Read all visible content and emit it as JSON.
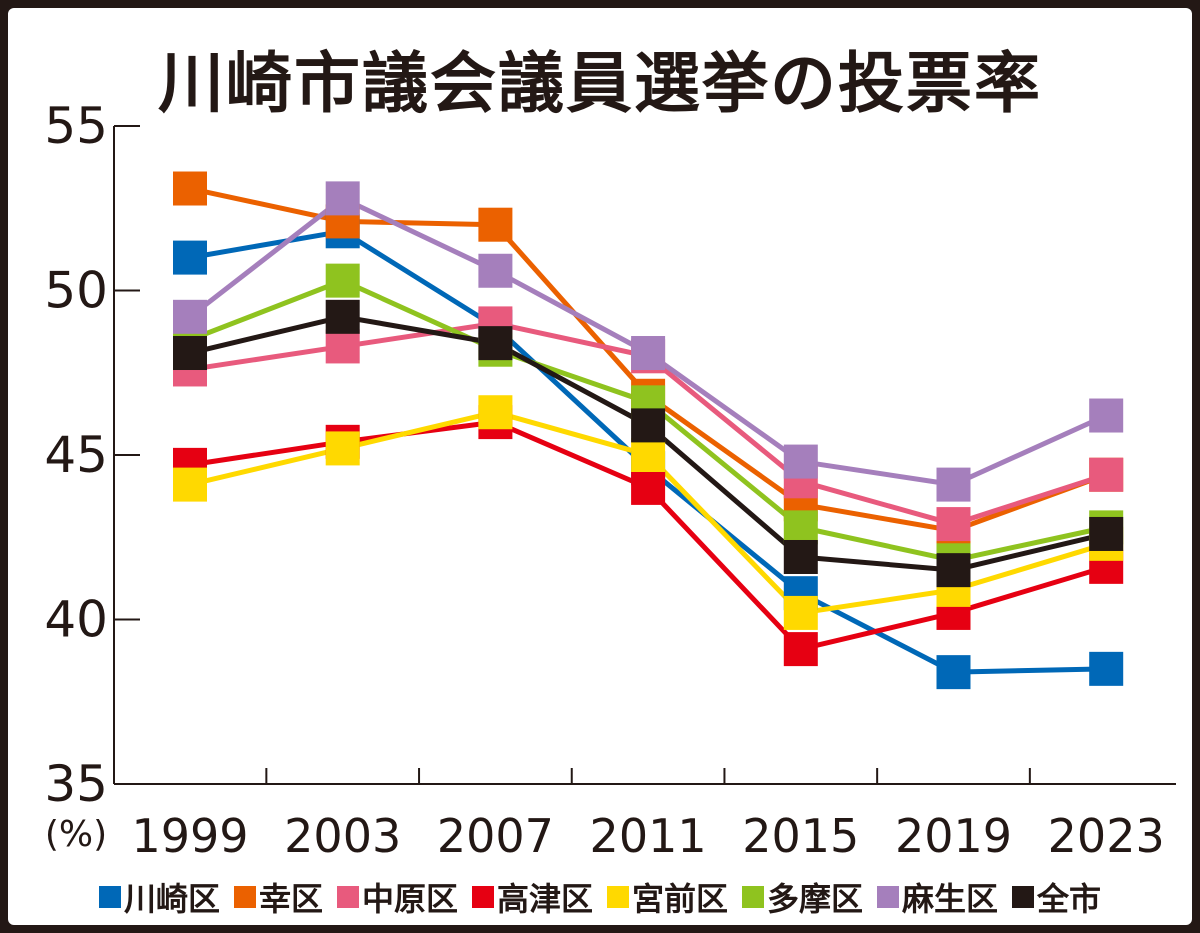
{
  "chart_data": {
    "type": "line",
    "title": "川崎市議会議員選挙の投票率",
    "ylabel": "(%)",
    "xlabel": "",
    "categories": [
      "1999",
      "2003",
      "2007",
      "2011",
      "2015",
      "2019",
      "2023"
    ],
    "yticks": [
      "55",
      "50",
      "45",
      "40",
      "35"
    ],
    "ylim": [
      35,
      55
    ],
    "legend_position": "bottom",
    "series": [
      {
        "name": "川崎区",
        "color": "#0068b7",
        "values": [
          51.0,
          51.8,
          48.9,
          44.6,
          40.8,
          38.4,
          38.5
        ]
      },
      {
        "name": "幸区",
        "color": "#eb6100",
        "values": [
          53.1,
          52.1,
          52.0,
          46.8,
          43.5,
          42.7,
          44.4
        ]
      },
      {
        "name": "中原区",
        "color": "#e85a7d",
        "values": [
          47.6,
          48.3,
          49.0,
          48.0,
          44.2,
          42.9,
          44.4
        ]
      },
      {
        "name": "高津区",
        "color": "#e60012",
        "values": [
          44.7,
          45.4,
          46.0,
          44.0,
          39.1,
          40.2,
          41.6
        ]
      },
      {
        "name": "宮前区",
        "color": "#ffd900",
        "values": [
          44.1,
          45.2,
          46.3,
          45.0,
          40.2,
          40.9,
          42.3
        ]
      },
      {
        "name": "多摩区",
        "color": "#8fc31f",
        "values": [
          48.5,
          50.3,
          48.2,
          46.6,
          42.8,
          41.8,
          42.8
        ]
      },
      {
        "name": "麻生区",
        "color": "#a57fbc",
        "values": [
          49.2,
          52.8,
          50.6,
          48.1,
          44.8,
          44.1,
          46.2
        ]
      },
      {
        "name": "全市",
        "color": "#231815",
        "values": [
          48.1,
          49.2,
          48.4,
          45.9,
          41.9,
          41.5,
          42.6
        ]
      }
    ]
  }
}
